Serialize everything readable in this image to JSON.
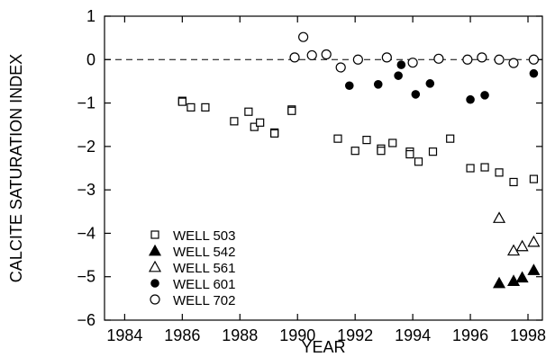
{
  "chart_data": {
    "type": "scatter",
    "xlabel": "YEAR",
    "ylabel": "CALCITE SATURATION INDEX",
    "xlim": [
      1983.3,
      1998.5
    ],
    "ylim": [
      -6,
      1
    ],
    "xticks": [
      1984,
      1986,
      1988,
      1990,
      1992,
      1994,
      1996,
      1998
    ],
    "yticks": [
      1,
      0,
      -1,
      -2,
      -3,
      -4,
      -5,
      -6
    ],
    "xtick_labels": [
      "1984",
      "1986",
      "1988",
      "1990",
      "1992",
      "1994",
      "1996",
      "1998"
    ],
    "ytick_labels": [
      "1",
      "0",
      "−1",
      "−2",
      "−3",
      "−4",
      "−5",
      "−6"
    ],
    "reference_line": {
      "y": 0,
      "style": "dashed"
    },
    "grid": false,
    "legend_position": "bottom-left",
    "series": [
      {
        "name": "WELL 503",
        "marker": "open-square",
        "points": [
          [
            1986.0,
            -0.95
          ],
          [
            1986.0,
            -0.97
          ],
          [
            1986.3,
            -1.1
          ],
          [
            1986.8,
            -1.1
          ],
          [
            1987.8,
            -1.42
          ],
          [
            1988.3,
            -1.2
          ],
          [
            1988.5,
            -1.55
          ],
          [
            1988.7,
            -1.45
          ],
          [
            1989.2,
            -1.68
          ],
          [
            1989.2,
            -1.7
          ],
          [
            1989.8,
            -1.15
          ],
          [
            1989.8,
            -1.18
          ],
          [
            1991.4,
            -1.82
          ],
          [
            1992.0,
            -2.1
          ],
          [
            1992.4,
            -1.85
          ],
          [
            1992.9,
            -2.05
          ],
          [
            1992.9,
            -2.1
          ],
          [
            1993.3,
            -1.92
          ],
          [
            1993.9,
            -2.12
          ],
          [
            1993.9,
            -2.18
          ],
          [
            1994.2,
            -2.35
          ],
          [
            1994.7,
            -2.12
          ],
          [
            1995.3,
            -1.82
          ],
          [
            1996.0,
            -2.5
          ],
          [
            1996.5,
            -2.48
          ],
          [
            1997.0,
            -2.6
          ],
          [
            1997.5,
            -2.82
          ],
          [
            1998.2,
            -2.75
          ]
        ]
      },
      {
        "name": "WELL 542",
        "marker": "filled-triangle",
        "points": [
          [
            1997.0,
            -5.15
          ],
          [
            1997.5,
            -5.1
          ],
          [
            1997.8,
            -5.02
          ],
          [
            1998.2,
            -4.85
          ]
        ]
      },
      {
        "name": "WELL 561",
        "marker": "open-triangle",
        "points": [
          [
            1997.0,
            -3.65
          ],
          [
            1997.5,
            -4.4
          ],
          [
            1997.8,
            -4.3
          ],
          [
            1998.2,
            -4.2
          ]
        ]
      },
      {
        "name": "WELL 601",
        "marker": "filled-circle",
        "points": [
          [
            1991.8,
            -0.6
          ],
          [
            1992.8,
            -0.57
          ],
          [
            1993.5,
            -0.37
          ],
          [
            1993.6,
            -0.12
          ],
          [
            1994.1,
            -0.8
          ],
          [
            1994.6,
            -0.55
          ],
          [
            1996.0,
            -0.92
          ],
          [
            1996.5,
            -0.82
          ],
          [
            1998.2,
            -0.32
          ]
        ]
      },
      {
        "name": "WELL 702",
        "marker": "open-circle",
        "points": [
          [
            1989.9,
            0.05
          ],
          [
            1990.2,
            0.52
          ],
          [
            1990.5,
            0.1
          ],
          [
            1991.0,
            0.12
          ],
          [
            1991.5,
            -0.18
          ],
          [
            1992.1,
            0.0
          ],
          [
            1993.1,
            0.05
          ],
          [
            1994.0,
            -0.07
          ],
          [
            1994.9,
            0.02
          ],
          [
            1995.9,
            0.0
          ],
          [
            1996.4,
            0.05
          ],
          [
            1997.0,
            0.0
          ],
          [
            1997.5,
            -0.08
          ],
          [
            1998.2,
            0.0
          ]
        ]
      }
    ]
  }
}
